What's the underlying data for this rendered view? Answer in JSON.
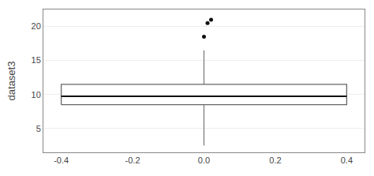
{
  "chart_data": {
    "type": "box",
    "ylabel": "dataset3",
    "xlim": [
      -0.45,
      0.45
    ],
    "ylim": [
      1.5,
      22.5
    ],
    "xticks": [
      -0.4,
      -0.2,
      {
        "value": 0.0,
        "label": "0.0"
      },
      0.2,
      0.4
    ],
    "yticks": [
      5,
      10,
      15,
      20
    ],
    "grid": "y",
    "box": {
      "x_left": -0.4,
      "x_right": 0.4,
      "q1": 8.5,
      "median": 9.75,
      "q3": 11.5,
      "whisker_x": 0.0,
      "whisker_low": 2.5,
      "whisker_high": 16.5,
      "color": "#666666"
    },
    "outliers": {
      "x": [
        0.0,
        0.01,
        0.02
      ],
      "y": [
        18.5,
        20.5,
        21.0
      ],
      "color": "#111111"
    }
  }
}
